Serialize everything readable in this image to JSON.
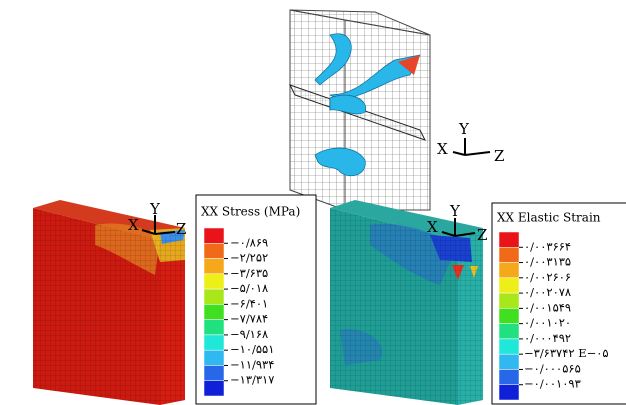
{
  "top_panel": {
    "triad": {
      "x": "X",
      "y": "Y",
      "z": "Z"
    }
  },
  "left_panel": {
    "triad": {
      "x": "X",
      "y": "Y",
      "z": "Z"
    },
    "legend": {
      "title": "XX Stress (MPa)",
      "labels": [
        "−۰/۸۶۹",
        "−۲/۲۵۲",
        "−۳/۶۳۵",
        "−۵/۰۱۸",
        "−۶/۴۰۱",
        "−۷/۷۸۴",
        "−۹/۱۶۸",
        "−۱۰/۵۵۱",
        "−۱۱/۹۳۴",
        "−۱۳/۳۱۷"
      ]
    }
  },
  "right_panel": {
    "triad": {
      "x": "X",
      "y": "Y",
      "z": "Z"
    },
    "legend": {
      "title": "XX Elastic Strain",
      "labels": [
        "۰/۰۰۳۶۶۴",
        "۰/۰۰۳۱۳۵",
        "۰/۰۰۲۶۰۶",
        "۰/۰۰۲۰۷۸",
        "۰/۰۰۱۵۴۹",
        "۰/۰۰۱۰۲۰",
        "۰/۰۰۰۴۹۲",
        "−۳/۶۳۷۴۲ E−۰۵",
        "−۰/۰۰۰۵۶۵",
        "−۰/۰۰۱۰۹۳"
      ]
    }
  }
}
